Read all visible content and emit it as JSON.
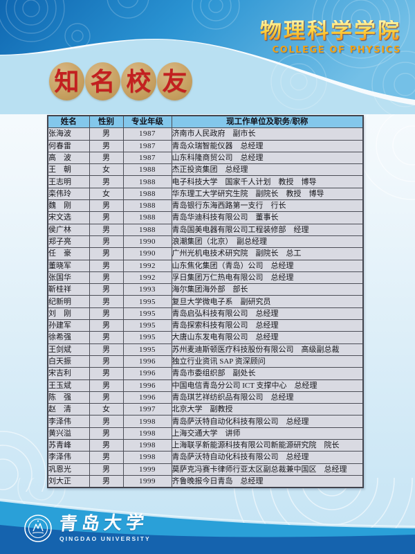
{
  "header": {
    "title": "物理科学学院",
    "subtitle": "COLLEGE OF PHYSICS"
  },
  "badge": {
    "chars": [
      "知",
      "名",
      "校",
      "友"
    ]
  },
  "table": {
    "columns": [
      "姓名",
      "性别",
      "专业年级",
      "现工作单位及职务/职称"
    ],
    "rows": [
      [
        "张海波",
        "男",
        "1987",
        "济南市人民政府　副市长"
      ],
      [
        "何春雷",
        "男",
        "1987",
        "青岛众瑞智能仪器　总经理"
      ],
      [
        "高　波",
        "男",
        "1987",
        "山东科隆商贸公司　总经理"
      ],
      [
        "王　朝",
        "女",
        "1988",
        "杰正投资集团　总经理"
      ],
      [
        "王志明",
        "男",
        "1988",
        "电子科技大学　国家千人计划　教授　博导"
      ],
      [
        "栾伟玲",
        "女",
        "1988",
        "华东理工大学研究生院　副院长　教授　博导"
      ],
      [
        "魏　刚",
        "男",
        "1988",
        "青岛银行东海西路第一支行　行长"
      ],
      [
        "宋文选",
        "男",
        "1988",
        "青岛华迪科技有限公司　董事长"
      ],
      [
        "侯广林",
        "男",
        "1988",
        "青岛国美电器有限公司工程装修部　经理"
      ],
      [
        "郑子亮",
        "男",
        "1990",
        "浪潮集团（北京）　副总经理"
      ],
      [
        "任　豪",
        "男",
        "1990",
        "广州光机电技术研究院　副院长　总工"
      ],
      [
        "董晓军",
        "男",
        "1992",
        "山东焦化集团（青岛）公司　总经理"
      ],
      [
        "张国华",
        "男",
        "1992",
        "孚日集团万仁热电有限公司　总经理"
      ],
      [
        "靳桂祥",
        "男",
        "1993",
        "海尔集团海外部　部长"
      ],
      [
        "纪新明",
        "男",
        "1995",
        "复旦大学微电子系　副研究员"
      ],
      [
        "刘　刚",
        "男",
        "1995",
        "青岛启弘科技有限公司　总经理"
      ],
      [
        "孙建军",
        "男",
        "1995",
        "青岛探索科技有限公司　总经理"
      ],
      [
        "徐希强",
        "男",
        "1995",
        "大唐山东发电有限公司　总经理"
      ],
      [
        "王剑斌",
        "男",
        "1995",
        "苏州麦迪斯顿医疗科技股份有限公司　高级副总裁"
      ],
      [
        "白天振",
        "男",
        "1996",
        "独立行业资讯 SAP 资深顾问"
      ],
      [
        "宋吉利",
        "男",
        "1996",
        "青岛市委组织部　副处长"
      ],
      [
        "王玉斌",
        "男",
        "1996",
        "中国电信青岛分公司 ICT 支撑中心　总经理"
      ],
      [
        "陈　强",
        "男",
        "1996",
        "青岛琪艺祥纺织品有限公司　总经理"
      ],
      [
        "赵　清",
        "女",
        "1997",
        "北京大学　副教授"
      ],
      [
        "李泽伟",
        "男",
        "1998",
        "青岛萨沃特自动化科技有限公司　总经理"
      ],
      [
        "黄兴溢",
        "男",
        "1998",
        "上海交通大学　讲师"
      ],
      [
        "苏青峰",
        "男",
        "1998",
        "上海联孚新能源科技有限公司新能源研究院　院长"
      ],
      [
        "李泽伟",
        "男",
        "1998",
        "青岛萨沃特自动化科技有限公司　总经理"
      ],
      [
        "巩恩光",
        "男",
        "1999",
        "莫萨克冯赛卡律师行亚太区副总裁兼中国区　总经理"
      ],
      [
        "刘大正",
        "男",
        "1999",
        "齐鲁晚报今日青岛　总经理"
      ]
    ]
  },
  "footer": {
    "university_cn": "青岛大学",
    "university_en": "QINGDAO UNIVERSITY"
  },
  "colors": {
    "banner_blue": "#2191d0",
    "banner_deep_blue": "#0f67b1",
    "title_gold": "#f5a623",
    "badge_circle": "#c8a263",
    "badge_text": "#c32020",
    "table_header_bg": "#83c7eb",
    "table_row_bg": "#d9dae2",
    "table_border": "#41434c",
    "footer_wave_mid": "#2aa0d8",
    "footer_wave_deep": "#1563ae"
  }
}
